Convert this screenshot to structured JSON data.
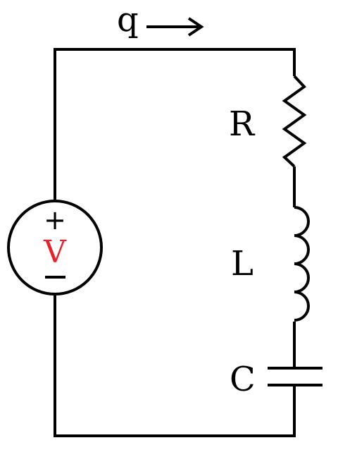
{
  "labels": {
    "charge": "q",
    "resistor": "R",
    "inductor": "L",
    "capacitor": "C",
    "source": "V",
    "plus": "+",
    "minus": "−"
  },
  "colors": {
    "wire": "#000000",
    "source_label": "#e8222a"
  },
  "icons": {
    "current_arrow": "right-arrow-icon"
  }
}
